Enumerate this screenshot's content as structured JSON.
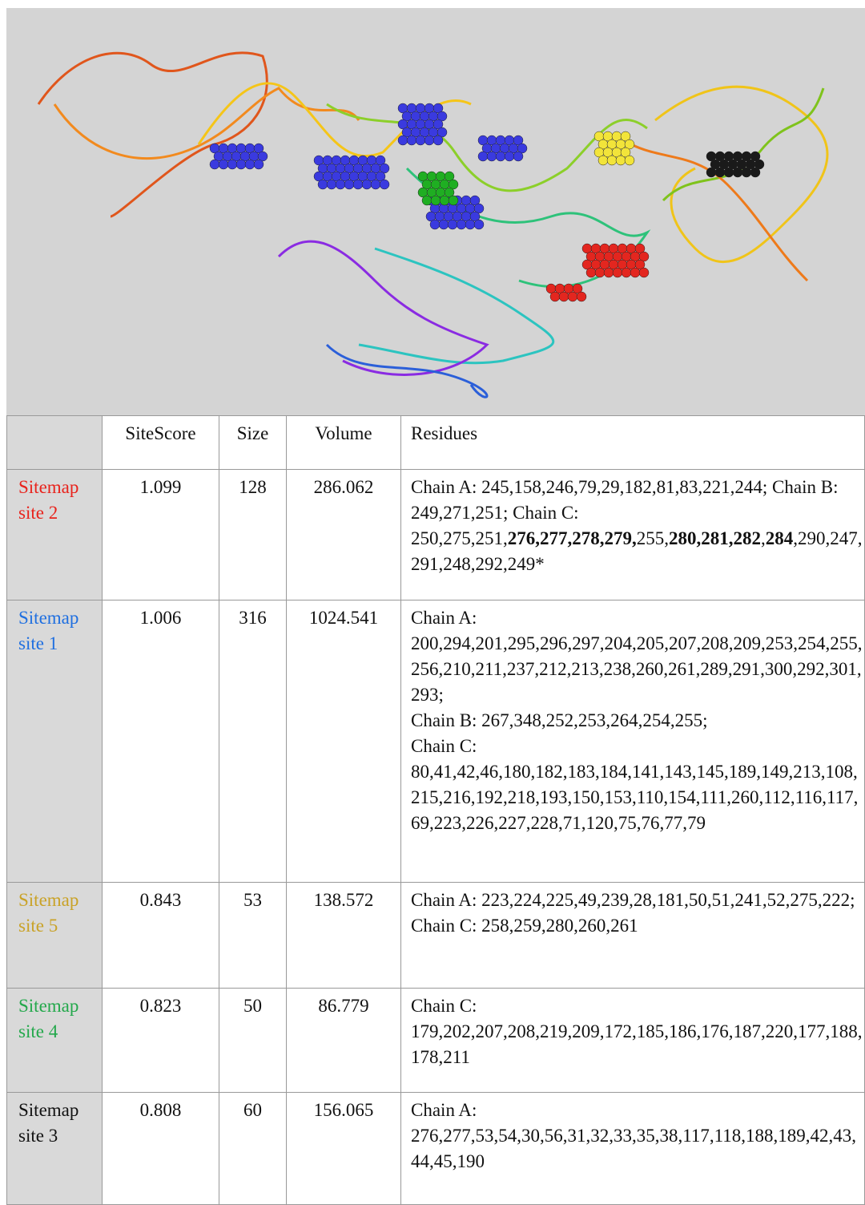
{
  "table": {
    "header": [
      "SiteScore",
      "Size",
      "Volume",
      "Residues"
    ],
    "rows": [
      {
        "site": "Sitemap site 2",
        "color": "#e8231c",
        "sitescore": "1.099",
        "size": "128",
        "volume": "286.062",
        "residues": [
          [
            "Chain A: 245,158,246,79,29,182,81,83,221,244; Chain B: 249,271,251; Chain C: 250,275,251,",
            {
              "text": "276,277,278,279,",
              "bold": true
            },
            "255,",
            {
              "text": "280,281,282",
              "bold": true
            },
            ",",
            {
              "text": "284",
              "bold": true
            },
            ",290,247,291,248,292,249*"
          ]
        ]
      },
      {
        "site": "Sitemap site 1",
        "color": "#1f6fe0",
        "sitescore": "1.006",
        "size": "316",
        "volume": "1024.541",
        "residues": [
          [
            "Chain A: 200,294,201,295,296,297,204,205,207,208,209,253,254,255,256,210,211,237,212,213,238,260,261,289,291,300,292,301,293;"
          ],
          [
            "Chain B: 267,348,252,253,264,254,255;"
          ],
          [
            "Chain C: 80,41,42,46,180,182,183,184,141,143,145,189,149,213,108,215,216,192,218,193,150,153,110,154,111,260,112,116,117,69,223,226,227,228,71,120,75,76,77,79"
          ]
        ]
      },
      {
        "site": "Sitemap site 5",
        "color": "#c9a227",
        "sitescore": "0.843",
        "size": "53",
        "volume": "138.572",
        "residues": [
          [
            "Chain A: 223,224,225,49,239,28,181,50,51,241,52,275,222;"
          ],
          [
            "Chain C: 258,259,280,260,261"
          ]
        ]
      },
      {
        "site": "Sitemap site 4",
        "color": "#23a84b",
        "sitescore": "0.823",
        "size": "50",
        "volume": "86.779",
        "residues": [
          [
            "Chain C: 179,202,207,208,219,209,172,185,186,176,187,220,177,188,178,211"
          ]
        ]
      },
      {
        "site": "Sitemap site 3",
        "color": "#111111",
        "sitescore": "0.808",
        "size": "60",
        "volume": "156.065",
        "residues": [
          [
            "Chain A: 276,277,53,54,30,56,31,32,33,35,38,117,118,188,189,42,43,44,45,190"
          ]
        ]
      }
    ]
  }
}
